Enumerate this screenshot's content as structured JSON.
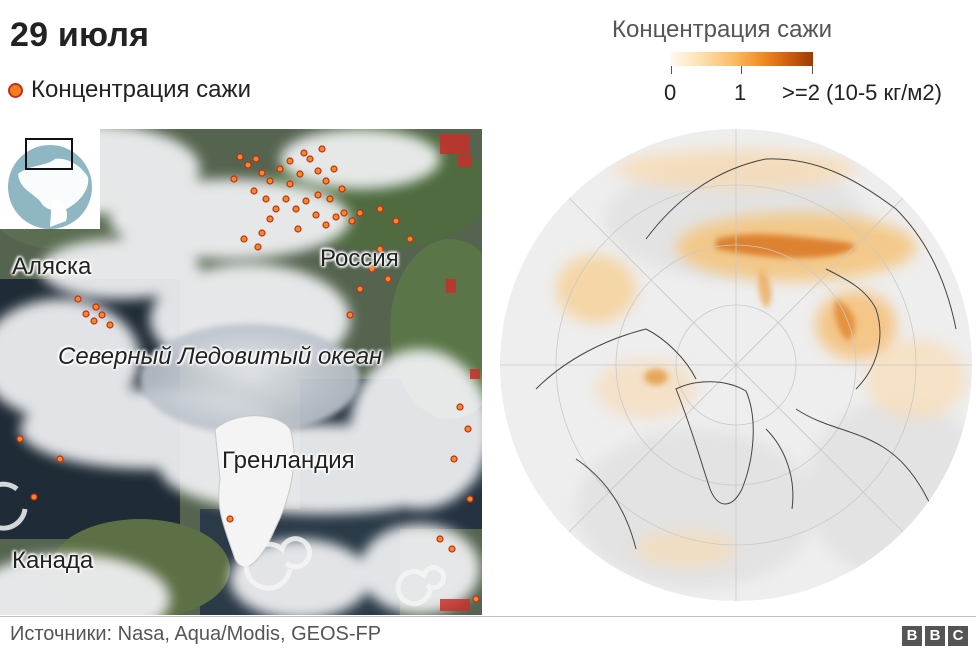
{
  "header": {
    "title": "29 июля"
  },
  "legend": {
    "dot_label": "Концентрация сажи",
    "dot_color": "#f27f1f"
  },
  "scale": {
    "title": "Концентрация сажи",
    "labels": [
      "0",
      "1",
      ">=2 (10-5 кг/м2)"
    ],
    "colors": [
      "#fff8ee",
      "#fde2b4",
      "#f9bb62",
      "#ef8a22",
      "#d0600f",
      "#9b3a05"
    ]
  },
  "satellite_map": {
    "labels": {
      "alaska": "Аляска",
      "russia": "Россия",
      "arctic_ocean": "Северный Ледовитый океан",
      "greenland": "Гренландия",
      "canada": "Канада"
    }
  },
  "footer": {
    "source": "Источники: Nasa, Aqua/Modis, GEOS-FP",
    "logo": [
      "B",
      "B",
      "C"
    ]
  }
}
